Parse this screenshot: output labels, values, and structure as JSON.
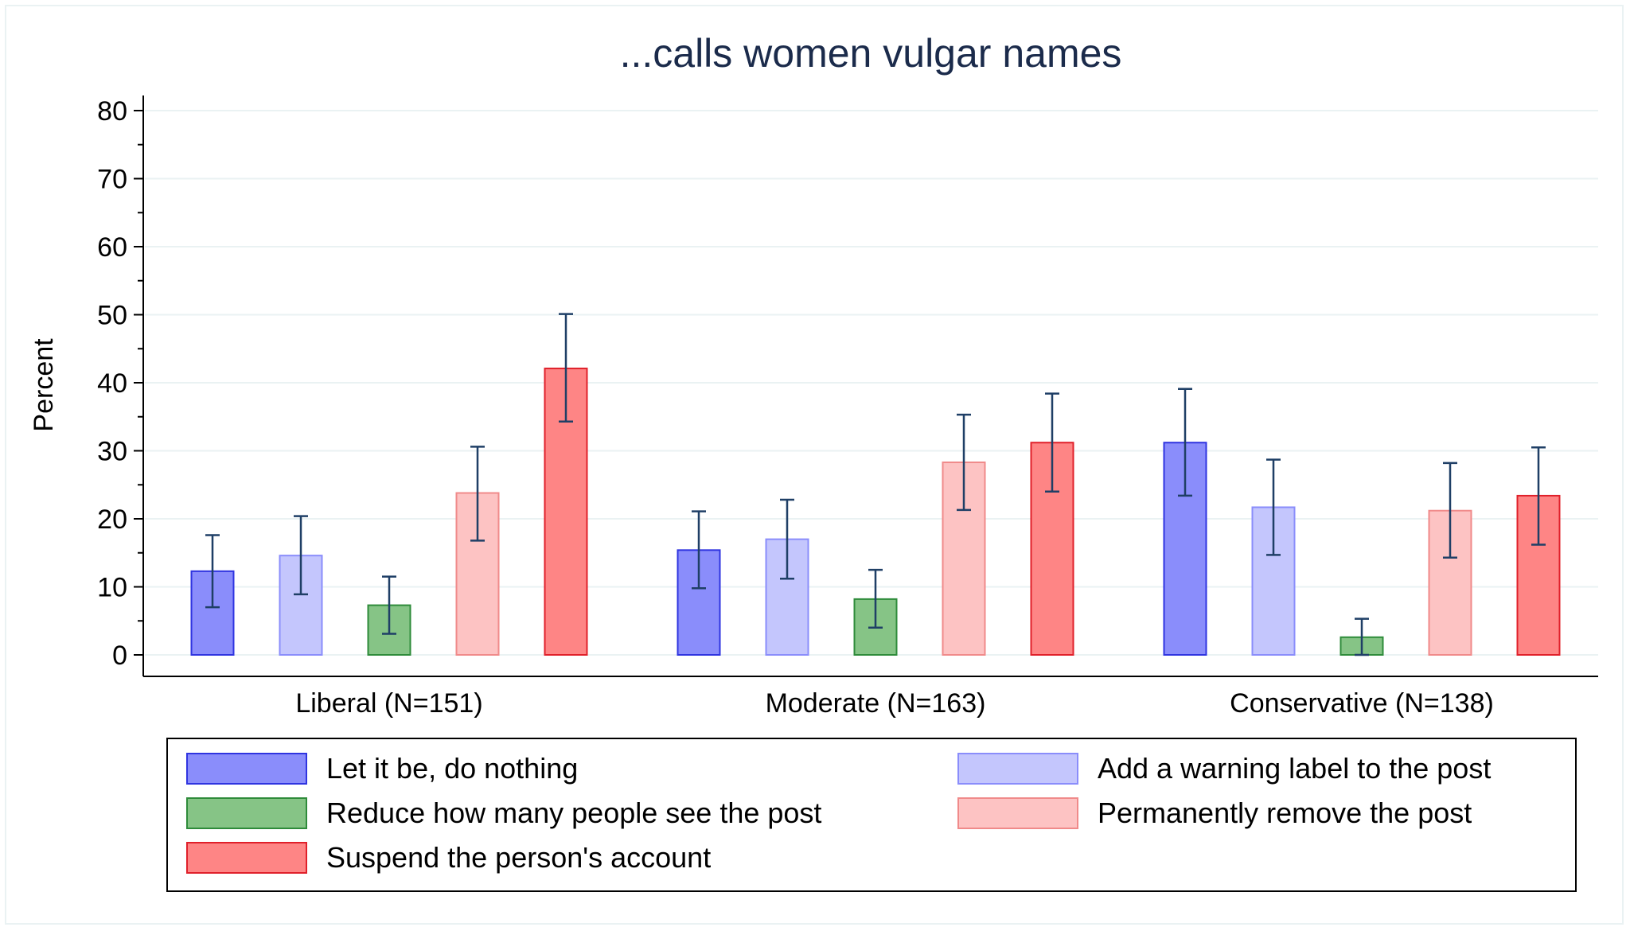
{
  "chart_data": {
    "type": "bar",
    "title": "...calls women vulgar names",
    "xlabel": "",
    "ylabel": "Percent",
    "ylim": [
      0,
      80
    ],
    "yticks": [
      0,
      10,
      20,
      30,
      40,
      50,
      60,
      70,
      80
    ],
    "grid": true,
    "legend_position": "bottom",
    "categories": [
      "Liberal (N=151)",
      "Moderate (N=163)",
      "Conservative (N=138)"
    ],
    "series": [
      {
        "name": "Let it be, do nothing",
        "color": "#8a8dfb",
        "stroke": "#2f34e0",
        "values": [
          12.3,
          15.4,
          31.2
        ],
        "ci_low": [
          7.0,
          9.8,
          23.4
        ],
        "ci_high": [
          17.6,
          21.1,
          39.1
        ]
      },
      {
        "name": "Add a warning label to the post",
        "color": "#c4c6fd",
        "stroke": "#8a8dfb",
        "values": [
          14.6,
          17.0,
          21.7
        ],
        "ci_low": [
          8.9,
          11.2,
          14.7
        ],
        "ci_high": [
          20.4,
          22.8,
          28.7
        ]
      },
      {
        "name": "Reduce how many people see the post",
        "color": "#86c486",
        "stroke": "#2e8b3a",
        "values": [
          7.3,
          8.2,
          2.6
        ],
        "ci_low": [
          3.1,
          4.0,
          0.0
        ],
        "ci_high": [
          11.5,
          12.5,
          5.3
        ]
      },
      {
        "name": "Permanently remove the post",
        "color": "#fdc3c3",
        "stroke": "#f08a8a",
        "values": [
          23.8,
          28.3,
          21.2
        ],
        "ci_low": [
          16.8,
          21.3,
          14.3
        ],
        "ci_high": [
          30.6,
          35.3,
          28.2
        ]
      },
      {
        "name": "Suspend the person's account",
        "color": "#fe8585",
        "stroke": "#e0202a",
        "values": [
          42.1,
          31.2,
          23.4
        ],
        "ci_low": [
          34.3,
          24.0,
          16.2
        ],
        "ci_high": [
          50.1,
          38.4,
          30.5
        ]
      }
    ],
    "colors": {
      "title": "#1b2b4b",
      "grid": "#eaf2f3",
      "error_bar": "#1f3f66",
      "axis": "#000000"
    }
  }
}
